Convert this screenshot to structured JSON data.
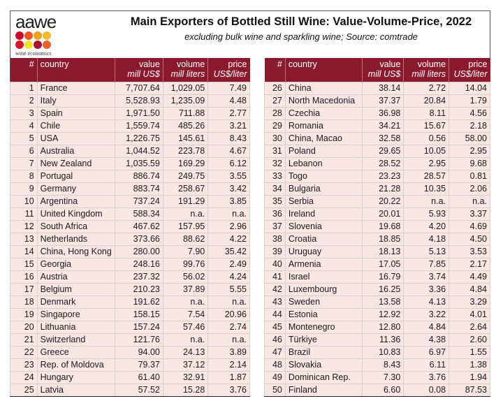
{
  "header": {
    "logo_text": "aawe",
    "logo_subtext": "wine economics",
    "logo_dot_colors": [
      "#c8102e",
      "#e8562a",
      "#f0a020",
      "#f5b82e",
      "#d8152a",
      "#f2e030",
      "#a5153a",
      "#e8602a"
    ],
    "title": "Main Exporters of Bottled Still Wine: Value-Volume-Price, 2022",
    "subtitle": "excluding bulk wine and sparkling wine; Source: comtrade"
  },
  "colors": {
    "header_bg": "#8c1a2e",
    "row_bg": "#f8e6e3"
  },
  "columns": [
    {
      "label": "#",
      "unit": ""
    },
    {
      "label": "country",
      "unit": ""
    },
    {
      "label": "value",
      "unit": "mill US$"
    },
    {
      "label": "volume",
      "unit": "mill liters"
    },
    {
      "label": "price",
      "unit": "US$/liter"
    }
  ],
  "left_rows": [
    [
      "1",
      "France",
      "7,707.64",
      "1,029.05",
      "7.49"
    ],
    [
      "2",
      "Italy",
      "5,528.93",
      "1,235.09",
      "4.48"
    ],
    [
      "3",
      "Spain",
      "1,971.50",
      "711.88",
      "2.77"
    ],
    [
      "4",
      "Chile",
      "1,559.74",
      "485.26",
      "3.21"
    ],
    [
      "5",
      "USA",
      "1,226.75",
      "145.61",
      "8.43"
    ],
    [
      "6",
      "Australia",
      "1,044.52",
      "223.78",
      "4.67"
    ],
    [
      "7",
      "New Zealand",
      "1,035.59",
      "169.29",
      "6.12"
    ],
    [
      "8",
      "Portugal",
      "886.74",
      "249.75",
      "3.55"
    ],
    [
      "9",
      "Germany",
      "883.74",
      "258.67",
      "3.42"
    ],
    [
      "10",
      "Argentina",
      "737.24",
      "191.29",
      "3.85"
    ],
    [
      "11",
      "United Kingdom",
      "588.34",
      "n.a.",
      "n.a."
    ],
    [
      "12",
      "South Africa",
      "467.62",
      "157.95",
      "2.96"
    ],
    [
      "13",
      "Netherlands",
      "373.66",
      "88.62",
      "4.22"
    ],
    [
      "14",
      "China, Hong Kong",
      "280.00",
      "7.90",
      "35.42"
    ],
    [
      "15",
      "Georgia",
      "248.16",
      "99.76",
      "2.49"
    ],
    [
      "16",
      "Austria",
      "237.32",
      "56.02",
      "4.24"
    ],
    [
      "17",
      "Belgium",
      "210.23",
      "37.89",
      "5.55"
    ],
    [
      "18",
      "Denmark",
      "191.62",
      "n.a.",
      "n.a."
    ],
    [
      "19",
      "Singapore",
      "158.15",
      "7.54",
      "20.96"
    ],
    [
      "20",
      "Lithuania",
      "157.24",
      "57.46",
      "2.74"
    ],
    [
      "21",
      "Switzerland",
      "121.76",
      "n.a.",
      "n.a."
    ],
    [
      "22",
      "Greece",
      "94.00",
      "24.13",
      "3.89"
    ],
    [
      "23",
      "Rep. of Moldova",
      "79.37",
      "37.12",
      "2.14"
    ],
    [
      "24",
      "Hungary",
      "61.40",
      "32.91",
      "1.87"
    ],
    [
      "25",
      "Latvia",
      "57.52",
      "15.28",
      "3.76"
    ]
  ],
  "right_rows": [
    [
      "26",
      "China",
      "38.14",
      "2.72",
      "14.04"
    ],
    [
      "27",
      "North Macedonia",
      "37.37",
      "20.84",
      "1.79"
    ],
    [
      "28",
      "Czechia",
      "36.98",
      "8.11",
      "4.56"
    ],
    [
      "29",
      "Romania",
      "34.21",
      "15.67",
      "2.18"
    ],
    [
      "30",
      "China, Macao",
      "32.58",
      "0.56",
      "58.00"
    ],
    [
      "31",
      "Poland",
      "29.65",
      "10.05",
      "2.95"
    ],
    [
      "32",
      "Lebanon",
      "28.52",
      "2.95",
      "9.68"
    ],
    [
      "33",
      "Togo",
      "23.23",
      "28.57",
      "0.81"
    ],
    [
      "34",
      "Bulgaria",
      "21.28",
      "10.35",
      "2.06"
    ],
    [
      "35",
      "Serbia",
      "20.22",
      "n.a.",
      "n.a."
    ],
    [
      "36",
      "Ireland",
      "20.01",
      "5.93",
      "3.37"
    ],
    [
      "37",
      "Slovenia",
      "19.68",
      "4.20",
      "4.69"
    ],
    [
      "38",
      "Croatia",
      "18.85",
      "4.18",
      "4.50"
    ],
    [
      "39",
      "Uruguay",
      "18.13",
      "5.13",
      "3.53"
    ],
    [
      "40",
      "Armenia",
      "17.05",
      "7.85",
      "2.17"
    ],
    [
      "41",
      "Israel",
      "16.79",
      "3.74",
      "4.49"
    ],
    [
      "42",
      "Luxembourg",
      "16.25",
      "3.36",
      "4.84"
    ],
    [
      "43",
      "Sweden",
      "13.58",
      "4.13",
      "3.29"
    ],
    [
      "44",
      "Estonia",
      "12.92",
      "3.22",
      "4.01"
    ],
    [
      "45",
      "Montenegro",
      "12.80",
      "4.84",
      "2.64"
    ],
    [
      "46",
      "Türkiye",
      "11.36",
      "4.38",
      "2.60"
    ],
    [
      "47",
      "Brazil",
      "10.83",
      "6.97",
      "1.55"
    ],
    [
      "48",
      "Slovakia",
      "8.43",
      "6.11",
      "1.38"
    ],
    [
      "49",
      "Dominican Rep.",
      "7.30",
      "3.76",
      "1.94"
    ],
    [
      "50",
      "Finland",
      "6.60",
      "0.08",
      "87.53"
    ]
  ]
}
